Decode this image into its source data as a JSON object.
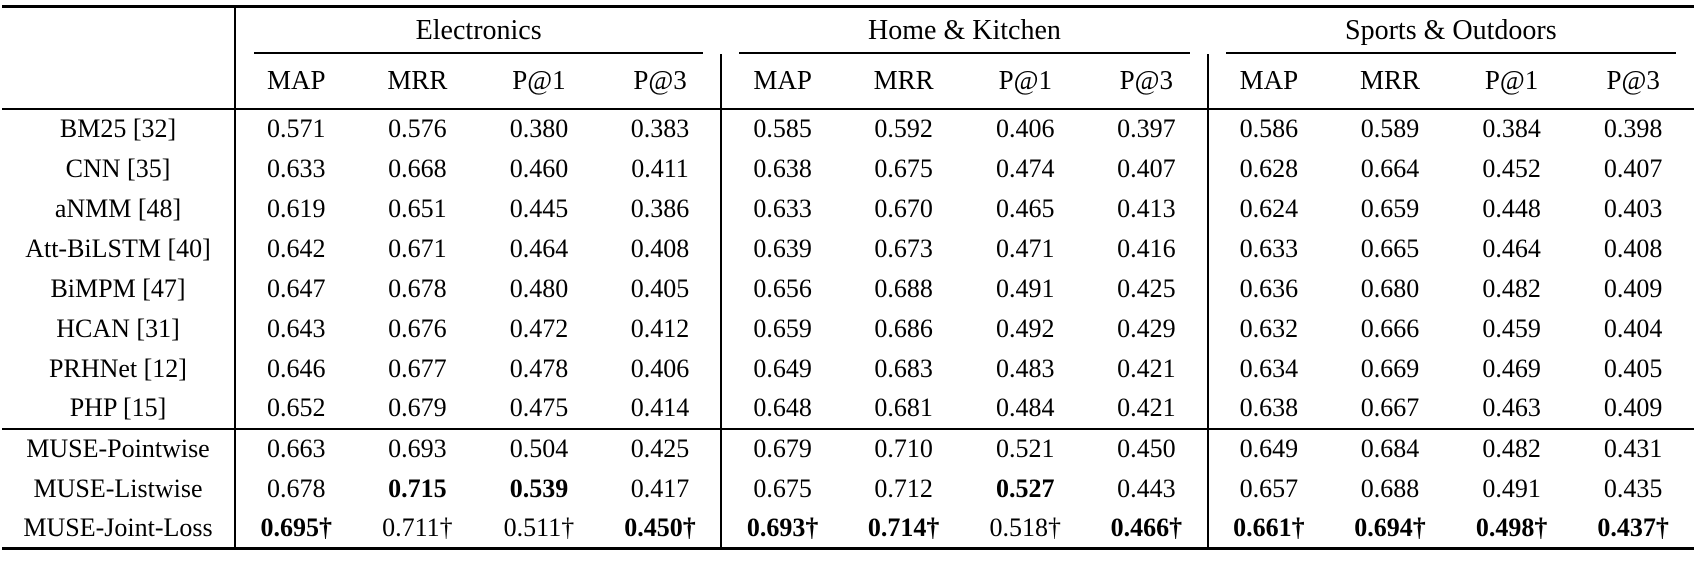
{
  "table": {
    "corner_label": "",
    "metric_labels": [
      "MAP",
      "MRR",
      "P@1",
      "P@3"
    ],
    "groups": [
      {
        "label": "Electronics"
      },
      {
        "label": "Home & Kitchen"
      },
      {
        "label": "Sports & Outdoors"
      }
    ],
    "sections": [
      {
        "name": "baselines",
        "rows": [
          {
            "label": "BM25 [32]",
            "values": [
              "0.571",
              "0.576",
              "0.380",
              "0.383",
              "0.585",
              "0.592",
              "0.406",
              "0.397",
              "0.586",
              "0.589",
              "0.384",
              "0.398"
            ],
            "bold": []
          },
          {
            "label": "CNN [35]",
            "values": [
              "0.633",
              "0.668",
              "0.460",
              "0.411",
              "0.638",
              "0.675",
              "0.474",
              "0.407",
              "0.628",
              "0.664",
              "0.452",
              "0.407"
            ],
            "bold": []
          },
          {
            "label": "aNMM [48]",
            "values": [
              "0.619",
              "0.651",
              "0.445",
              "0.386",
              "0.633",
              "0.670",
              "0.465",
              "0.413",
              "0.624",
              "0.659",
              "0.448",
              "0.403"
            ],
            "bold": []
          },
          {
            "label": "Att-BiLSTM [40]",
            "values": [
              "0.642",
              "0.671",
              "0.464",
              "0.408",
              "0.639",
              "0.673",
              "0.471",
              "0.416",
              "0.633",
              "0.665",
              "0.464",
              "0.408"
            ],
            "bold": []
          },
          {
            "label": "BiMPM [47]",
            "values": [
              "0.647",
              "0.678",
              "0.480",
              "0.405",
              "0.656",
              "0.688",
              "0.491",
              "0.425",
              "0.636",
              "0.680",
              "0.482",
              "0.409"
            ],
            "bold": []
          },
          {
            "label": "HCAN [31]",
            "values": [
              "0.643",
              "0.676",
              "0.472",
              "0.412",
              "0.659",
              "0.686",
              "0.492",
              "0.429",
              "0.632",
              "0.666",
              "0.459",
              "0.404"
            ],
            "bold": []
          },
          {
            "label": "PRHNet [12]",
            "values": [
              "0.646",
              "0.677",
              "0.478",
              "0.406",
              "0.649",
              "0.683",
              "0.483",
              "0.421",
              "0.634",
              "0.669",
              "0.469",
              "0.405"
            ],
            "bold": []
          },
          {
            "label": "PHP [15]",
            "values": [
              "0.652",
              "0.679",
              "0.475",
              "0.414",
              "0.648",
              "0.681",
              "0.484",
              "0.421",
              "0.638",
              "0.667",
              "0.463",
              "0.409"
            ],
            "bold": []
          }
        ]
      },
      {
        "name": "muse",
        "rows": [
          {
            "label": "MUSE-Pointwise",
            "values": [
              "0.663",
              "0.693",
              "0.504",
              "0.425",
              "0.679",
              "0.710",
              "0.521",
              "0.450",
              "0.649",
              "0.684",
              "0.482",
              "0.431"
            ],
            "bold": []
          },
          {
            "label": "MUSE-Listwise",
            "values": [
              "0.678",
              "0.715",
              "0.539",
              "0.417",
              "0.675",
              "0.712",
              "0.527",
              "0.443",
              "0.657",
              "0.688",
              "0.491",
              "0.435"
            ],
            "bold": [
              1,
              2,
              6
            ]
          },
          {
            "label": "MUSE-Joint-Loss",
            "values": [
              "0.695†",
              "0.711†",
              "0.511†",
              "0.450†",
              "0.693†",
              "0.714†",
              "0.518†",
              "0.466†",
              "0.661†",
              "0.694†",
              "0.498†",
              "0.437†"
            ],
            "bold": [
              0,
              3,
              4,
              5,
              7,
              8,
              9,
              10,
              11
            ]
          }
        ]
      }
    ]
  }
}
